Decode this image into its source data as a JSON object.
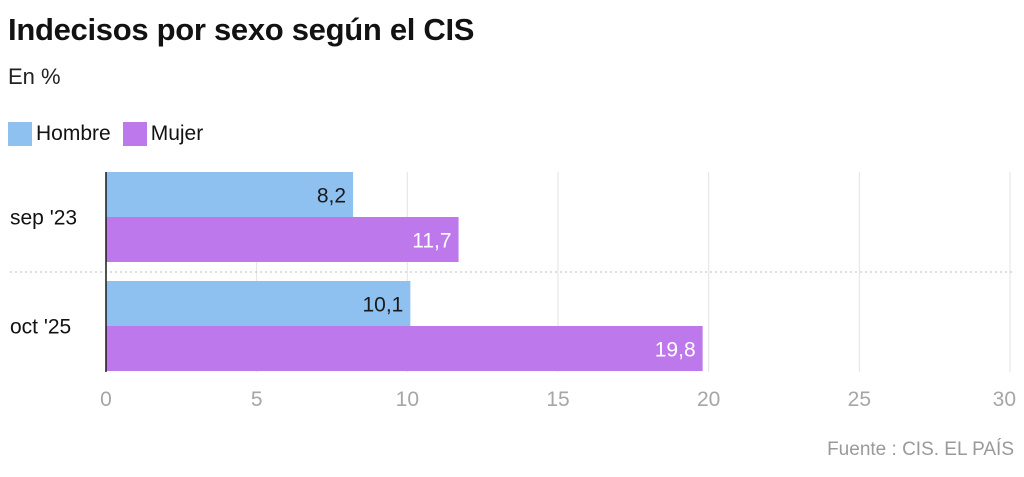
{
  "header": {
    "title": "Indecisos por sexo según el CIS",
    "subtitle": "En %"
  },
  "legend": [
    {
      "label": "Hombre",
      "color": "#8ec1f0"
    },
    {
      "label": "Mujer",
      "color": "#bd79eb"
    }
  ],
  "source": "Fuente : CIS. EL PAÍS",
  "chart_data": {
    "type": "bar",
    "orientation": "horizontal",
    "categories": [
      "sep '23",
      "oct '25"
    ],
    "series": [
      {
        "name": "Hombre",
        "color": "#8ec1f0",
        "values": [
          8.2,
          10.1
        ],
        "labels": [
          "8,2",
          "10,1"
        ]
      },
      {
        "name": "Mujer",
        "color": "#bd79eb",
        "values": [
          11.7,
          19.8
        ],
        "labels": [
          "11,7",
          "19,8"
        ]
      }
    ],
    "xlim": [
      0,
      30
    ],
    "xticks": [
      0,
      5,
      10,
      15,
      20,
      25,
      30
    ],
    "grid": true,
    "legend_position": "top-left"
  }
}
